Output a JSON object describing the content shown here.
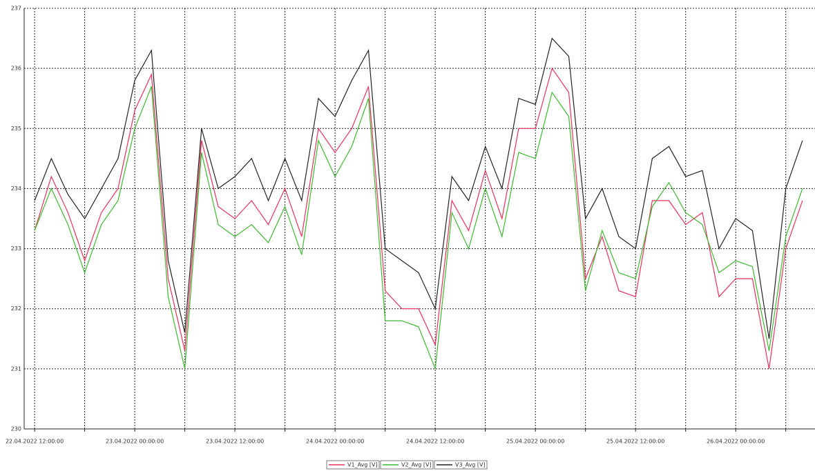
{
  "chart_data": {
    "type": "line",
    "x": [
      "2022-04-22T12:00",
      "2022-04-22T14:00",
      "2022-04-22T16:00",
      "2022-04-22T18:00",
      "2022-04-22T20:00",
      "2022-04-22T22:00",
      "2022-04-23T00:00",
      "2022-04-23T02:00",
      "2022-04-23T04:00",
      "2022-04-23T06:00",
      "2022-04-23T08:00",
      "2022-04-23T10:00",
      "2022-04-23T12:00",
      "2022-04-23T14:00",
      "2022-04-23T16:00",
      "2022-04-23T18:00",
      "2022-04-23T20:00",
      "2022-04-23T22:00",
      "2022-04-24T00:00",
      "2022-04-24T02:00",
      "2022-04-24T04:00",
      "2022-04-24T06:00",
      "2022-04-24T08:00",
      "2022-04-24T10:00",
      "2022-04-24T12:00",
      "2022-04-24T14:00",
      "2022-04-24T16:00",
      "2022-04-24T18:00",
      "2022-04-24T20:00",
      "2022-04-24T22:00",
      "2022-04-25T00:00",
      "2022-04-25T02:00",
      "2022-04-25T04:00",
      "2022-04-25T06:00",
      "2022-04-25T08:00",
      "2022-04-25T10:00",
      "2022-04-25T12:00",
      "2022-04-25T14:00",
      "2022-04-25T16:00",
      "2022-04-25T18:00",
      "2022-04-25T20:00",
      "2022-04-25T22:00",
      "2022-04-26T00:00",
      "2022-04-26T02:00",
      "2022-04-26T04:00",
      "2022-04-26T06:00",
      "2022-04-26T08:00"
    ],
    "series": [
      {
        "name": "V1_Avg [V]",
        "color": "#e8305a",
        "values": [
          233.3,
          234.2,
          233.6,
          232.8,
          233.6,
          234.0,
          235.3,
          235.9,
          232.5,
          231.3,
          234.8,
          233.7,
          233.5,
          233.8,
          233.4,
          234.0,
          233.2,
          235.0,
          234.6,
          235.0,
          235.7,
          232.3,
          232.0,
          232.0,
          231.4,
          233.8,
          233.3,
          234.3,
          233.5,
          235.0,
          235.0,
          236.0,
          235.6,
          232.5,
          233.2,
          232.3,
          232.2,
          233.8,
          233.8,
          233.4,
          233.6,
          232.2,
          232.5,
          232.5,
          231.0,
          233.0,
          233.8
        ]
      },
      {
        "name": "V2_Avg [V]",
        "color": "#3cb830",
        "values": [
          233.3,
          234.0,
          233.4,
          232.6,
          233.4,
          233.8,
          235.0,
          235.7,
          232.2,
          231.0,
          234.6,
          233.4,
          233.2,
          233.4,
          233.1,
          233.7,
          232.9,
          234.8,
          234.2,
          234.7,
          235.5,
          231.8,
          231.8,
          231.7,
          231.0,
          233.6,
          233.0,
          234.0,
          233.2,
          234.6,
          234.5,
          235.6,
          235.2,
          232.3,
          233.3,
          232.6,
          232.5,
          233.7,
          234.1,
          233.6,
          233.4,
          232.6,
          232.8,
          232.7,
          231.3,
          233.2,
          234.0
        ]
      },
      {
        "name": "V3_Avg [V]",
        "color": "#222222",
        "values": [
          233.8,
          234.5,
          233.9,
          233.5,
          234.0,
          234.5,
          235.8,
          236.3,
          232.8,
          231.6,
          235.0,
          234.0,
          234.2,
          234.5,
          233.8,
          234.5,
          233.8,
          235.5,
          235.2,
          235.8,
          236.3,
          233.0,
          232.8,
          232.6,
          232.0,
          234.2,
          233.8,
          234.7,
          234.0,
          235.5,
          235.4,
          236.5,
          236.2,
          233.5,
          234.0,
          233.2,
          233.0,
          234.5,
          234.7,
          234.2,
          234.3,
          233.0,
          233.5,
          233.3,
          231.5,
          234.0,
          234.8
        ]
      }
    ],
    "xlim": [
      "2022-04-22T10:45",
      "2022-04-26T09:30"
    ],
    "xticks": [
      {
        "value": "2022-04-22T12:00",
        "label": "22.04.2022 12:00:00"
      },
      {
        "value": "2022-04-22T18:00"
      },
      {
        "value": "2022-04-23T00:00",
        "label": "23.04.2022 00:00:00"
      },
      {
        "value": "2022-04-23T06:00"
      },
      {
        "value": "2022-04-23T12:00",
        "label": "23.04.2022 12:00:00"
      },
      {
        "value": "2022-04-23T18:00"
      },
      {
        "value": "2022-04-24T00:00",
        "label": "24.04.2022 00:00:00"
      },
      {
        "value": "2022-04-24T06:00"
      },
      {
        "value": "2022-04-24T12:00",
        "label": "24.04.2022 12:00:00"
      },
      {
        "value": "2022-04-24T18:00"
      },
      {
        "value": "2022-04-25T00:00",
        "label": "25.04.2022 00:00:00"
      },
      {
        "value": "2022-04-25T06:00"
      },
      {
        "value": "2022-04-25T12:00",
        "label": "25.04.2022 12:00:00"
      },
      {
        "value": "2022-04-25T18:00"
      },
      {
        "value": "2022-04-26T00:00",
        "label": "26.04.2022 00:00:00"
      },
      {
        "value": "2022-04-26T06:00"
      }
    ],
    "ylim": [
      230,
      237
    ],
    "yticks": [
      230,
      231,
      232,
      233,
      234,
      235,
      236,
      237
    ],
    "grid": true
  }
}
